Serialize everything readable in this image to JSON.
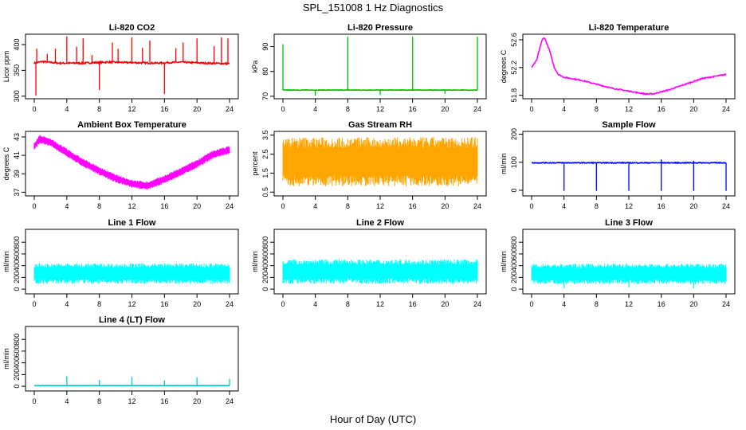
{
  "title": "SPL_151008  1 Hz Diagnostics",
  "xlabel": "Hour of Day (UTC)",
  "chart_data": [
    {
      "id": "co2",
      "type": "line",
      "title": "Li-820 CO2",
      "ylabel": "Licor ppm",
      "color": "#ff0000",
      "xticks": [
        0,
        4,
        8,
        12,
        16,
        20,
        24
      ],
      "xlim": [
        0,
        24
      ],
      "ylim": [
        295,
        420
      ],
      "yticks": [
        300,
        350,
        400
      ],
      "baseline": [
        [
          0,
          364
        ],
        [
          1,
          367
        ],
        [
          3,
          364
        ],
        [
          6,
          364
        ],
        [
          9,
          366
        ],
        [
          12,
          365
        ],
        [
          15,
          364
        ],
        [
          18,
          366
        ],
        [
          21,
          364
        ],
        [
          24,
          363
        ]
      ],
      "noise": 1.5,
      "spikes": [
        [
          1.6,
          382
        ],
        [
          2.6,
          392
        ],
        [
          4,
          416
        ],
        [
          5.2,
          396
        ],
        [
          6,
          412
        ],
        [
          7.1,
          380
        ],
        [
          8,
          312
        ],
        [
          9.6,
          404
        ],
        [
          10.3,
          392
        ],
        [
          12,
          414
        ],
        [
          13.3,
          394
        ],
        [
          14.2,
          408
        ],
        [
          16,
          304
        ],
        [
          17.4,
          393
        ],
        [
          18.3,
          404
        ],
        [
          20,
          412
        ],
        [
          22.1,
          397
        ],
        [
          23,
          414
        ],
        [
          23.8,
          412
        ],
        [
          0.2,
          301
        ],
        [
          0.3,
          392
        ]
      ]
    },
    {
      "id": "pressure",
      "type": "line",
      "title": "Li-820 Pressure",
      "ylabel": "kPa",
      "color": "#00bb00",
      "xticks": [
        0,
        4,
        8,
        12,
        16,
        20,
        24
      ],
      "xlim": [
        0,
        24
      ],
      "ylim": [
        69,
        95
      ],
      "yticks": [
        70,
        80,
        90
      ],
      "baseline": [
        [
          0,
          72.5
        ],
        [
          24,
          72.5
        ]
      ],
      "noise": 0.1,
      "spikes": [
        [
          0,
          91
        ],
        [
          4,
          70.2
        ],
        [
          8,
          94
        ],
        [
          12,
          70.5
        ],
        [
          16,
          94
        ],
        [
          20,
          71
        ],
        [
          24,
          94
        ]
      ]
    },
    {
      "id": "li820temp",
      "type": "line",
      "title": "Li-820 Temperature",
      "ylabel": "degrees C",
      "color": "#ff00ff",
      "xticks": [
        0,
        4,
        8,
        12,
        16,
        20,
        24
      ],
      "xlim": [
        0,
        24
      ],
      "ylim": [
        51.75,
        52.68
      ],
      "yticks": [
        51.8,
        52.2,
        52.6
      ],
      "baseline": [
        [
          0,
          52.2
        ],
        [
          0.6,
          52.3
        ],
        [
          1.3,
          52.6
        ],
        [
          1.6,
          52.63
        ],
        [
          2.2,
          52.45
        ],
        [
          2.8,
          52.2
        ],
        [
          3.3,
          52.1
        ],
        [
          4,
          52.06
        ],
        [
          6,
          52.02
        ],
        [
          8,
          51.96
        ],
        [
          10,
          51.9
        ],
        [
          12,
          51.86
        ],
        [
          14,
          51.82
        ],
        [
          15,
          51.82
        ],
        [
          17,
          51.88
        ],
        [
          19,
          51.96
        ],
        [
          21,
          52.04
        ],
        [
          23,
          52.08
        ],
        [
          24,
          52.1
        ]
      ],
      "noise": 0.008,
      "spikes": []
    },
    {
      "id": "boxtemp",
      "type": "band",
      "title": "Ambient Box Temperature",
      "ylabel": "degrees C",
      "color": "#ff00ff",
      "xticks": [
        0,
        4,
        8,
        12,
        16,
        20,
        24
      ],
      "xlim": [
        0,
        24
      ],
      "ylim": [
        36.6,
        43.6
      ],
      "yticks": [
        37,
        39,
        41,
        43
      ],
      "baseline": [
        [
          0,
          42
        ],
        [
          0.7,
          42.8
        ],
        [
          2,
          42.4
        ],
        [
          4,
          41.3
        ],
        [
          6,
          40.2
        ],
        [
          8,
          39.3
        ],
        [
          10,
          38.5
        ],
        [
          12,
          37.9
        ],
        [
          14,
          37.7
        ],
        [
          16,
          38.4
        ],
        [
          18,
          39.2
        ],
        [
          20,
          40.1
        ],
        [
          22,
          41.1
        ],
        [
          24,
          41.6
        ]
      ],
      "noise": 0.45,
      "spikes": []
    },
    {
      "id": "rh",
      "type": "band",
      "title": "Gas Stream RH",
      "ylabel": "percent",
      "color": "#ffa500",
      "xticks": [
        0,
        4,
        8,
        12,
        16,
        20,
        24
      ],
      "xlim": [
        0,
        24
      ],
      "ylim": [
        0.3,
        3.7
      ],
      "yticks": [
        0.5,
        1.5,
        2.5,
        3.5
      ],
      "baseline": [
        [
          0,
          2.1
        ],
        [
          24,
          2.1
        ]
      ],
      "noise": 1.3,
      "spikes": []
    },
    {
      "id": "sampleflow",
      "type": "line",
      "title": "Sample Flow",
      "ylabel": "ml/min",
      "color": "#0000ff",
      "xticks": [
        0,
        4,
        8,
        12,
        16,
        20,
        24
      ],
      "xlim": [
        0,
        24
      ],
      "ylim": [
        -20,
        210
      ],
      "yticks": [
        0,
        100,
        200
      ],
      "baseline": [
        [
          0,
          98
        ],
        [
          24,
          98
        ]
      ],
      "noise": 1.5,
      "spikes": [
        [
          4,
          -2
        ],
        [
          8,
          -2
        ],
        [
          12,
          -2
        ],
        [
          16,
          -2
        ],
        [
          20,
          -2
        ],
        [
          24,
          -2
        ],
        [
          16,
          110
        ],
        [
          20,
          105
        ]
      ]
    },
    {
      "id": "line1",
      "type": "band",
      "title": "Line 1 Flow",
      "ylabel": "ml/min",
      "color": "#00ffff",
      "xticks": [
        0,
        4,
        8,
        12,
        16,
        20,
        24
      ],
      "xlim": [
        0,
        24
      ],
      "ylim": [
        -80,
        1020
      ],
      "yticks": [
        0,
        200,
        400,
        600,
        800
      ],
      "baseline": [
        [
          0,
          265
        ],
        [
          24,
          265
        ]
      ],
      "noise": 175,
      "spikes": []
    },
    {
      "id": "line2",
      "type": "band",
      "title": "Line 2 Flow",
      "ylabel": "ml/min",
      "color": "#00ffff",
      "xticks": [
        0,
        4,
        8,
        12,
        16,
        20,
        24
      ],
      "xlim": [
        0,
        24
      ],
      "ylim": [
        -80,
        1020
      ],
      "yticks": [
        0,
        200,
        400,
        600,
        800
      ],
      "baseline": [
        [
          0,
          300
        ],
        [
          24,
          300
        ]
      ],
      "noise": 210,
      "spikes": []
    },
    {
      "id": "line3",
      "type": "band",
      "title": "Line 3 Flow",
      "ylabel": "ml/min",
      "color": "#00ffff",
      "xticks": [
        0,
        4,
        8,
        12,
        16,
        20,
        24
      ],
      "xlim": [
        0,
        24
      ],
      "ylim": [
        -80,
        1020
      ],
      "yticks": [
        0,
        200,
        400,
        600,
        800
      ],
      "baseline": [
        [
          0,
          260
        ],
        [
          24,
          260
        ]
      ],
      "noise": 175,
      "spikes": [
        [
          4,
          10
        ],
        [
          12,
          30
        ],
        [
          20,
          15
        ]
      ]
    },
    {
      "id": "line4",
      "type": "line",
      "title": "Line 4 (LT) Flow",
      "ylabel": "ml/min",
      "color": "#00cccc",
      "xticks": [
        0,
        4,
        8,
        12,
        16,
        20,
        24
      ],
      "xlim": [
        0,
        24
      ],
      "ylim": [
        -80,
        1020
      ],
      "yticks": [
        0,
        200,
        400,
        600,
        800
      ],
      "baseline": [
        [
          0,
          12
        ],
        [
          24,
          12
        ]
      ],
      "noise": 2,
      "spikes": [
        [
          4,
          170
        ],
        [
          8,
          110
        ],
        [
          12,
          160
        ],
        [
          16,
          100
        ],
        [
          20,
          150
        ],
        [
          24,
          130
        ]
      ]
    }
  ]
}
